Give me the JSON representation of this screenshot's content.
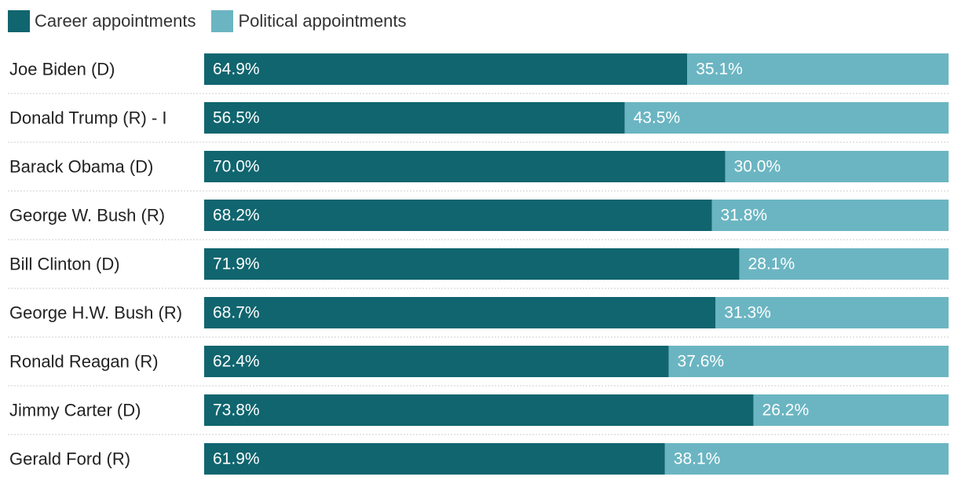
{
  "chart_data": {
    "type": "bar",
    "orientation": "horizontal",
    "stacked": true,
    "percent_stacked": true,
    "legend_position": "top-left",
    "categories": [
      "Joe Biden (D)",
      "Donald Trump (R) - I",
      "Barack Obama (D)",
      "George W. Bush (R)",
      "Bill Clinton (D)",
      "George H.W. Bush (R)",
      "Ronald Reagan (R)",
      "Jimmy Carter (D)",
      "Gerald Ford (R)"
    ],
    "series": [
      {
        "name": "Career appointments",
        "color": "#10656f",
        "values": [
          64.9,
          56.5,
          70.0,
          68.2,
          71.9,
          68.7,
          62.4,
          73.8,
          61.9
        ],
        "labels": [
          "64.9%",
          "56.5%",
          "70.0%",
          "68.2%",
          "71.9%",
          "68.7%",
          "62.4%",
          "73.8%",
          "61.9%"
        ]
      },
      {
        "name": "Political appointments",
        "color": "#6bb5c2",
        "values": [
          35.1,
          43.5,
          30.0,
          31.8,
          28.1,
          31.3,
          37.6,
          26.2,
          38.1
        ],
        "labels": [
          "35.1%",
          "43.5%",
          "30.0%",
          "31.8%",
          "28.1%",
          "31.3%",
          "37.6%",
          "26.2%",
          "38.1%"
        ]
      }
    ],
    "xlim": [
      0,
      100
    ],
    "grid": false
  }
}
